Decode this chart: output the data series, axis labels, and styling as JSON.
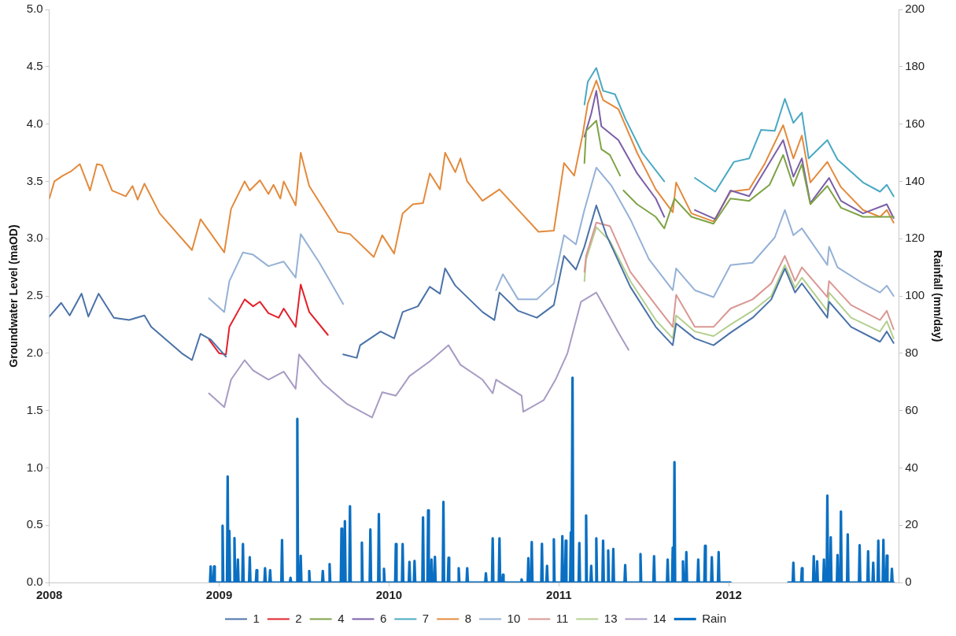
{
  "chart_data": {
    "type": "line",
    "ylabel": "Groundwater Level (maOD)",
    "y2label": "Rainfall (mm/day)",
    "xlim": [
      2008,
      2013
    ],
    "xticks": [
      2008,
      2009,
      2010,
      2011,
      2012
    ],
    "ylim": [
      0,
      5
    ],
    "yticks": [
      {
        "value": 0,
        "label": "0.0"
      },
      {
        "value": 0.5,
        "label": "0.5"
      },
      {
        "value": 1,
        "label": "1.0"
      },
      {
        "value": 1.5,
        "label": "1.5"
      },
      {
        "value": 2,
        "label": "2.0"
      },
      {
        "value": 2.5,
        "label": "2.5"
      },
      {
        "value": 3,
        "label": "3.0"
      },
      {
        "value": 3.5,
        "label": "3.5"
      },
      {
        "value": 4,
        "label": "4.0"
      },
      {
        "value": 4.5,
        "label": "4.5"
      },
      {
        "value": 5,
        "label": "5.0"
      }
    ],
    "y2lim": [
      0,
      200
    ],
    "y2ticks": [
      0,
      20,
      40,
      60,
      80,
      100,
      120,
      140,
      160,
      180,
      200
    ],
    "grid": false,
    "legend": "bottom",
    "marker": "none",
    "line_style": "solid",
    "series": [
      {
        "name": "1",
        "color": "#4a72a8",
        "x": [
          2008.0,
          2008.07,
          2008.12,
          2008.19,
          2008.23,
          2008.29,
          2008.38,
          2008.47,
          2008.56,
          2008.6,
          2008.78,
          2008.84,
          2008.89,
          2008.95,
          2009.04,
          2009.4,
          2009.73,
          2009.81,
          2009.83,
          2009.95,
          2010.03,
          2010.08,
          2010.17,
          2010.24,
          2010.3,
          2010.33,
          2010.39,
          2010.55,
          2010.62,
          2010.65,
          2010.76,
          2010.87,
          2010.97,
          2011.03,
          2011.1,
          2011.15,
          2011.22,
          2011.28,
          2011.42,
          2011.57,
          2011.67,
          2011.69,
          2011.8,
          2011.91,
          2012.01,
          2012.14,
          2012.25,
          2012.33,
          2012.39,
          2012.43,
          2012.58,
          2012.59,
          2012.72,
          2012.89,
          2012.93,
          2012.97
        ],
        "values": [
          2.32,
          2.44,
          2.33,
          2.52,
          2.32,
          2.52,
          2.31,
          2.29,
          2.33,
          2.23,
          2.0,
          1.94,
          2.17,
          2.12,
          1.97,
          null,
          1.99,
          1.96,
          2.07,
          2.19,
          2.13,
          2.36,
          2.41,
          2.58,
          2.52,
          2.74,
          2.59,
          2.36,
          2.29,
          2.53,
          2.37,
          2.31,
          2.42,
          2.85,
          2.73,
          2.93,
          3.29,
          3.03,
          2.58,
          2.23,
          2.07,
          2.26,
          2.13,
          2.07,
          2.18,
          2.31,
          2.47,
          2.74,
          2.53,
          2.61,
          2.31,
          2.45,
          2.23,
          2.1,
          2.19,
          2.09
        ]
      },
      {
        "name": "2",
        "color": "#e3202a",
        "x": [
          2008.94,
          2009.0,
          2009.04,
          2009.06,
          2009.15,
          2009.2,
          2009.24,
          2009.29,
          2009.35,
          2009.38,
          2009.45,
          2009.48,
          2009.53,
          2009.64
        ],
        "values": [
          2.12,
          2.0,
          1.99,
          2.23,
          2.47,
          2.41,
          2.45,
          2.35,
          2.31,
          2.39,
          2.23,
          2.6,
          2.36,
          2.16
        ]
      },
      {
        "name": "4",
        "color": "#7ea346",
        "x": [
          2011.15,
          2011.16,
          2011.22,
          2011.25,
          2011.3,
          2011.36,
          2011.37,
          2011.38,
          2011.46,
          2011.57,
          2011.62,
          2011.68,
          2011.78,
          2011.91,
          2012.01,
          2012.12,
          2012.24,
          2012.32,
          2012.38,
          2012.43,
          2012.48,
          2012.58,
          2012.66,
          2012.79,
          2012.97
        ],
        "values": [
          3.66,
          3.94,
          4.03,
          3.78,
          3.73,
          3.55,
          null,
          3.42,
          3.3,
          3.19,
          3.09,
          3.35,
          3.19,
          3.13,
          3.35,
          3.33,
          3.47,
          3.73,
          3.46,
          3.65,
          3.3,
          3.46,
          3.27,
          3.19,
          3.19
        ]
      },
      {
        "name": "6",
        "color": "#7b5ea7",
        "x": [
          2011.15,
          2011.19,
          2011.22,
          2011.25,
          2011.35,
          2011.46,
          2011.57,
          2011.62,
          2011.7,
          2011.8,
          2011.92,
          2012.01,
          2012.12,
          2012.21,
          2012.32,
          2012.38,
          2012.43,
          2012.48,
          2012.59,
          2012.66,
          2012.79,
          2012.93,
          2012.97
        ],
        "values": [
          3.89,
          4.09,
          4.29,
          3.98,
          3.86,
          3.57,
          3.35,
          3.19,
          null,
          3.25,
          3.17,
          3.42,
          3.37,
          3.59,
          3.86,
          3.54,
          3.7,
          3.31,
          3.53,
          3.33,
          3.22,
          3.3,
          3.18
        ]
      },
      {
        "name": "7",
        "color": "#4aa9c3",
        "x": [
          2011.15,
          2011.17,
          2011.22,
          2011.26,
          2011.33,
          2011.39,
          2011.49,
          2011.62,
          2011.7,
          2011.8,
          2011.92,
          2012.03,
          2012.12,
          2012.19,
          2012.27,
          2012.33,
          2012.38,
          2012.43,
          2012.47,
          2012.58,
          2012.64,
          2012.79,
          2012.89,
          2012.93,
          2012.97
        ],
        "values": [
          4.17,
          4.37,
          4.49,
          4.29,
          4.26,
          4.05,
          3.75,
          3.5,
          null,
          3.53,
          3.41,
          3.67,
          3.7,
          3.95,
          3.94,
          4.22,
          4.01,
          4.1,
          3.7,
          3.86,
          3.69,
          3.49,
          3.41,
          3.47,
          3.37
        ]
      },
      {
        "name": "8",
        "color": "#e38a3c",
        "x": [
          2008.0,
          2008.03,
          2008.08,
          2008.13,
          2008.18,
          2008.24,
          2008.28,
          2008.31,
          2008.37,
          2008.45,
          2008.49,
          2008.52,
          2008.56,
          2008.65,
          2008.84,
          2008.89,
          2009.03,
          2009.07,
          2009.15,
          2009.18,
          2009.24,
          2009.29,
          2009.32,
          2009.36,
          2009.38,
          2009.45,
          2009.48,
          2009.53,
          2009.7,
          2009.77,
          2009.91,
          2009.96,
          2010.03,
          2010.08,
          2010.14,
          2010.2,
          2010.24,
          2010.3,
          2010.33,
          2010.39,
          2010.42,
          2010.46,
          2010.55,
          2010.65,
          2010.78,
          2010.88,
          2010.97,
          2011.03,
          2011.09,
          2011.14,
          2011.17,
          2011.22,
          2011.26,
          2011.35,
          2011.46,
          2011.57,
          2011.67,
          2011.69,
          2011.78,
          2011.91,
          2012.01,
          2012.12,
          2012.21,
          2012.32,
          2012.38,
          2012.43,
          2012.48,
          2012.58,
          2012.66,
          2012.79,
          2012.89,
          2012.93,
          2012.97
        ],
        "values": [
          3.35,
          3.5,
          3.55,
          3.59,
          3.65,
          3.42,
          3.65,
          3.64,
          3.42,
          3.37,
          3.46,
          3.34,
          3.48,
          3.22,
          2.9,
          3.17,
          2.88,
          3.26,
          3.5,
          3.42,
          3.51,
          3.39,
          3.47,
          3.35,
          3.5,
          3.29,
          3.75,
          3.46,
          3.06,
          3.04,
          2.84,
          3.03,
          2.87,
          3.22,
          3.3,
          3.31,
          3.57,
          3.43,
          3.75,
          3.58,
          3.7,
          3.5,
          3.33,
          3.43,
          3.22,
          3.06,
          3.07,
          3.66,
          3.55,
          3.91,
          4.18,
          4.38,
          4.21,
          4.13,
          3.75,
          3.43,
          3.23,
          3.49,
          3.22,
          3.15,
          3.41,
          3.43,
          3.65,
          3.99,
          3.7,
          3.9,
          3.49,
          3.67,
          3.45,
          3.25,
          3.19,
          3.25,
          3.14
        ]
      },
      {
        "name": "10",
        "color": "#95b1d6",
        "x": [
          2008.94,
          2009.03,
          2009.06,
          2009.14,
          2009.2,
          2009.29,
          2009.38,
          2009.45,
          2009.48,
          2009.59,
          2009.73,
          2010.2,
          2010.63,
          2010.67,
          2010.76,
          2010.87,
          2010.97,
          2011.03,
          2011.1,
          2011.15,
          2011.22,
          2011.31,
          2011.42,
          2011.53,
          2011.67,
          2011.69,
          2011.8,
          2011.91,
          2012.01,
          2012.14,
          2012.27,
          2012.33,
          2012.38,
          2012.43,
          2012.58,
          2012.59,
          2012.64,
          2012.79,
          2012.89,
          2012.93,
          2012.97
        ],
        "values": [
          2.48,
          2.36,
          2.63,
          2.88,
          2.86,
          2.76,
          2.8,
          2.66,
          3.04,
          2.79,
          2.43,
          null,
          2.55,
          2.69,
          2.47,
          2.47,
          2.61,
          3.03,
          2.95,
          3.25,
          3.62,
          3.46,
          3.17,
          2.82,
          2.55,
          2.74,
          2.55,
          2.49,
          2.77,
          2.79,
          3.01,
          3.25,
          3.03,
          3.09,
          2.77,
          2.93,
          2.75,
          2.61,
          2.53,
          2.59,
          2.5
        ]
      },
      {
        "name": "11",
        "color": "#d99793",
        "x": [
          2011.15,
          2011.16,
          2011.22,
          2011.3,
          2011.42,
          2011.57,
          2011.67,
          2011.69,
          2011.8,
          2011.91,
          2012.01,
          2012.14,
          2012.25,
          2012.33,
          2012.39,
          2012.43,
          2012.58,
          2012.59,
          2012.72,
          2012.89,
          2012.93,
          2012.97
        ],
        "values": [
          2.71,
          2.85,
          3.14,
          3.11,
          2.71,
          2.42,
          2.23,
          2.51,
          2.23,
          2.23,
          2.39,
          2.47,
          2.61,
          2.85,
          2.63,
          2.75,
          2.49,
          2.63,
          2.42,
          2.29,
          2.37,
          2.21
        ]
      },
      {
        "name": "13",
        "color": "#b3cf8e",
        "x": [
          2011.15,
          2011.16,
          2011.22,
          2011.3,
          2011.42,
          2011.57,
          2011.67,
          2011.69,
          2011.8,
          2011.91,
          2012.01,
          2012.14,
          2012.25,
          2012.33,
          2012.39,
          2012.43,
          2012.58,
          2012.59,
          2012.72,
          2012.89,
          2012.93,
          2012.97
        ],
        "values": [
          2.63,
          2.82,
          3.1,
          2.98,
          2.63,
          2.29,
          2.13,
          2.33,
          2.19,
          2.15,
          2.25,
          2.37,
          2.5,
          2.77,
          2.57,
          2.66,
          2.37,
          2.53,
          2.31,
          2.19,
          2.28,
          2.13
        ]
      },
      {
        "name": "14",
        "color": "#a89bc4",
        "x": [
          2008.94,
          2009.03,
          2009.07,
          2009.15,
          2009.2,
          2009.29,
          2009.38,
          2009.45,
          2009.47,
          2009.61,
          2009.75,
          2009.9,
          2009.96,
          2010.04,
          2010.12,
          2010.24,
          2010.35,
          2010.42,
          2010.55,
          2010.61,
          2010.63,
          2010.78,
          2010.79,
          2010.91,
          2010.98,
          2011.05,
          2011.13,
          2011.22,
          2011.28,
          2011.35,
          2011.41
        ],
        "values": [
          1.65,
          1.53,
          1.77,
          1.94,
          1.85,
          1.77,
          1.84,
          1.69,
          1.99,
          1.74,
          1.56,
          1.44,
          1.66,
          1.63,
          1.8,
          1.93,
          2.07,
          1.9,
          1.77,
          1.65,
          1.77,
          1.63,
          1.49,
          1.59,
          1.77,
          2.0,
          2.45,
          2.53,
          2.37,
          2.18,
          2.03
        ]
      },
      {
        "name": "Rain",
        "color": "#0a6fc2",
        "axis": "y2",
        "x": [
          2008.946,
          2008.95,
          2008.954,
          2008.966,
          2008.97,
          2008.974,
          2009.016,
          2009.02,
          2009.024,
          2009.046,
          2009.05,
          2009.054,
          2009.056,
          2009.06,
          2009.064,
          2009.086,
          2009.09,
          2009.094,
          2009.106,
          2009.11,
          2009.114,
          2009.136,
          2009.14,
          2009.144,
          2009.176,
          2009.18,
          2009.184,
          2009.216,
          2009.22,
          2009.224,
          2009.266,
          2009.27,
          2009.274,
          2009.296,
          2009.3,
          2009.304,
          2009.366,
          2009.37,
          2009.374,
          2009.416,
          2009.42,
          2009.424,
          2009.456,
          2009.46,
          2009.464,
          2009.476,
          2009.48,
          2009.484,
          2009.526,
          2009.53,
          2009.534,
          2009.606,
          2009.61,
          2009.614,
          2009.646,
          2009.65,
          2009.654,
          2009.716,
          2009.72,
          2009.724,
          2009.736,
          2009.74,
          2009.744,
          2009.766,
          2009.77,
          2009.774,
          2009.836,
          2009.84,
          2009.844,
          2009.886,
          2009.89,
          2009.894,
          2009.936,
          2009.94,
          2009.944,
          2009.966,
          2009.97,
          2009.974,
          2010.036,
          2010.04,
          2010.044,
          2010.076,
          2010.08,
          2010.084,
          2010.116,
          2010.12,
          2010.124,
          2010.146,
          2010.15,
          2010.154,
          2010.196,
          2010.2,
          2010.204,
          2010.226,
          2010.23,
          2010.234,
          2010.246,
          2010.25,
          2010.254,
          2010.266,
          2010.27,
          2010.274,
          2010.316,
          2010.32,
          2010.324,
          2010.346,
          2010.35,
          2010.354,
          2010.406,
          2010.41,
          2010.414,
          2010.456,
          2010.46,
          2010.464,
          2010.566,
          2010.57,
          2010.574,
          2010.606,
          2010.61,
          2010.614,
          2010.646,
          2010.65,
          2010.654,
          2010.666,
          2010.67,
          2010.674,
          2010.776,
          2010.78,
          2010.784,
          2010.816,
          2010.82,
          2010.824,
          2010.836,
          2010.84,
          2010.844,
          2010.896,
          2010.9,
          2010.904,
          2010.926,
          2010.93,
          2010.934,
          2010.966,
          2010.97,
          2010.974,
          2011.016,
          2011.02,
          2011.024,
          2011.036,
          2011.04,
          2011.044,
          2011.066,
          2011.07,
          2011.074,
          2011.076,
          2011.08,
          2011.084,
          2011.116,
          2011.12,
          2011.124,
          2011.156,
          2011.16,
          2011.164,
          2011.186,
          2011.19,
          2011.194,
          2011.216,
          2011.22,
          2011.224,
          2011.256,
          2011.26,
          2011.264,
          2011.286,
          2011.29,
          2011.294,
          2011.316,
          2011.32,
          2011.324,
          2011.386,
          2011.39,
          2011.394,
          2011.476,
          2011.48,
          2011.484,
          2011.556,
          2011.56,
          2011.564,
          2011.636,
          2011.64,
          2011.644,
          2011.666,
          2011.67,
          2011.674,
          2011.676,
          2011.68,
          2011.684,
          2011.726,
          2011.73,
          2011.734,
          2011.746,
          2011.75,
          2011.754,
          2011.816,
          2011.82,
          2011.824,
          2011.856,
          2011.86,
          2011.864,
          2011.896,
          2011.9,
          2011.904,
          2011.936,
          2011.94,
          2011.944,
          2012.01,
          2012.2,
          2012.35,
          2012.376,
          2012.38,
          2012.384,
          2012.426,
          2012.43,
          2012.434,
          2012.496,
          2012.5,
          2012.504,
          2012.516,
          2012.52,
          2012.524,
          2012.556,
          2012.56,
          2012.564,
          2012.576,
          2012.58,
          2012.584,
          2012.596,
          2012.6,
          2012.604,
          2012.636,
          2012.64,
          2012.644,
          2012.656,
          2012.66,
          2012.664,
          2012.696,
          2012.7,
          2012.704,
          2012.766,
          2012.77,
          2012.774,
          2012.816,
          2012.82,
          2012.824,
          2012.846,
          2012.85,
          2012.854,
          2012.876,
          2012.88,
          2012.884,
          2012.906,
          2012.91,
          2012.914,
          2012.926,
          2012.93,
          2012.934,
          2012.956,
          2012.96,
          2012.964,
          2012.97
        ],
        "values": [
          0,
          5.6,
          0,
          0,
          5.6,
          0,
          0,
          19.8,
          0,
          0,
          37,
          0,
          0,
          18,
          0,
          0,
          15.5,
          0,
          0,
          8,
          0,
          0,
          13.4,
          0,
          0,
          8.8,
          0,
          0,
          4.3,
          0,
          0,
          5,
          0,
          0,
          4.3,
          0,
          0,
          14.8,
          0,
          0,
          1.6,
          0,
          0,
          57.1,
          0,
          0,
          9.3,
          0,
          0,
          4,
          0,
          0,
          4,
          0,
          0,
          6.4,
          0,
          0,
          18.8,
          0,
          0,
          21.4,
          0,
          0,
          26.6,
          0,
          0,
          13.9,
          0,
          0,
          18.5,
          0,
          0,
          23.9,
          0,
          0,
          4.8,
          0,
          0,
          13.4,
          0,
          0,
          13.4,
          0,
          0,
          7.2,
          0,
          0,
          7.5,
          0,
          0,
          22.7,
          0,
          0,
          25.2,
          0,
          0,
          8,
          0,
          0,
          9,
          0,
          0,
          28.1,
          0,
          0,
          8.6,
          0,
          0,
          5,
          0,
          0,
          5,
          0,
          0,
          3.2,
          0,
          0,
          15.4,
          0,
          0,
          15.4,
          0,
          0,
          2.7,
          0,
          0,
          1.1,
          0,
          0,
          8.5,
          0,
          0,
          14.1,
          0,
          0,
          13.5,
          0,
          0,
          5.8,
          0,
          0,
          15.1,
          0,
          0,
          16.2,
          0,
          0,
          14.6,
          0,
          0,
          17.5,
          0,
          0,
          71.5,
          0,
          0,
          13.8,
          0,
          0,
          23.4,
          0,
          0,
          5.8,
          0,
          0,
          15.4,
          0,
          0,
          14.6,
          0,
          0,
          11.2,
          0,
          0,
          11.7,
          0,
          0,
          6.1,
          0,
          0,
          9.9,
          0,
          0,
          9.2,
          0,
          0,
          8,
          0,
          0,
          12.2,
          0,
          0,
          42,
          0,
          0,
          7.4,
          0,
          0,
          10.6,
          0,
          0,
          8,
          0,
          0,
          12.8,
          0,
          0,
          8.8,
          0,
          0,
          10.6,
          0,
          0,
          null,
          0,
          0,
          6.9,
          0,
          0,
          5,
          0,
          0,
          9.2,
          0,
          0,
          7.4,
          0,
          0,
          8,
          0,
          0,
          30.3,
          0,
          0,
          15.8,
          0,
          0,
          9.6,
          0,
          0,
          24.8,
          0,
          0,
          16.8,
          0,
          0,
          13,
          0,
          0,
          10.9,
          0,
          0,
          6.9,
          0,
          0,
          14.6,
          0,
          0,
          14.9,
          0,
          0,
          9.4,
          0,
          0,
          4.8,
          0,
          0
        ]
      }
    ]
  }
}
